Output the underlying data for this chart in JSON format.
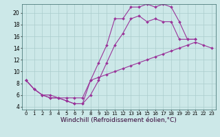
{
  "background_color": "#cce8e8",
  "grid_color": "#aacccc",
  "line_color": "#993399",
  "marker": "D",
  "marker_size": 2.0,
  "line_width": 0.8,
  "xlabel": "Windchill (Refroidissement éolien,°C)",
  "xlabel_fontsize": 6.5,
  "xtick_fontsize": 5.0,
  "ytick_fontsize": 5.5,
  "xlim": [
    -0.5,
    23.5
  ],
  "ylim": [
    3.5,
    21.5
  ],
  "yticks": [
    4,
    6,
    8,
    10,
    12,
    14,
    16,
    18,
    20
  ],
  "xticks": [
    0,
    1,
    2,
    3,
    4,
    5,
    6,
    7,
    8,
    9,
    10,
    11,
    12,
    13,
    14,
    15,
    16,
    17,
    18,
    19,
    20,
    21,
    22,
    23
  ],
  "curve1_x": [
    0,
    1,
    2,
    3,
    4,
    5,
    6,
    7,
    8,
    9,
    10,
    11,
    12,
    13,
    14,
    15,
    16,
    17,
    18,
    19,
    20,
    21
  ],
  "curve1_y": [
    8.5,
    7.0,
    6.0,
    5.5,
    5.5,
    5.0,
    4.5,
    4.5,
    8.5,
    11.5,
    14.5,
    19.0,
    19.0,
    21.0,
    21.0,
    21.5,
    21.0,
    21.5,
    21.0,
    18.5,
    15.5,
    15.5
  ],
  "curve2_x": [
    0,
    1,
    2,
    3,
    4,
    5,
    6,
    7,
    8,
    9,
    10,
    11,
    12,
    13,
    14,
    15,
    16,
    17,
    18,
    19,
    20,
    21
  ],
  "curve2_y": [
    8.5,
    7.0,
    6.0,
    5.5,
    5.5,
    5.0,
    4.5,
    4.5,
    6.0,
    8.5,
    11.5,
    14.5,
    16.5,
    19.0,
    19.5,
    18.5,
    19.0,
    18.5,
    18.5,
    15.5,
    15.5,
    15.5
  ],
  "curve3_x": [
    0,
    1,
    2,
    3,
    4,
    5,
    6,
    7,
    8,
    9,
    10,
    11,
    12,
    13,
    14,
    15,
    16,
    17,
    18,
    19,
    20,
    21,
    22,
    23
  ],
  "curve3_y": [
    8.5,
    7.0,
    6.0,
    6.0,
    5.5,
    5.5,
    5.5,
    5.5,
    8.5,
    9.0,
    9.5,
    10.0,
    10.5,
    11.0,
    11.5,
    12.0,
    12.5,
    13.0,
    13.5,
    14.0,
    14.5,
    15.0,
    14.5,
    14.0
  ]
}
